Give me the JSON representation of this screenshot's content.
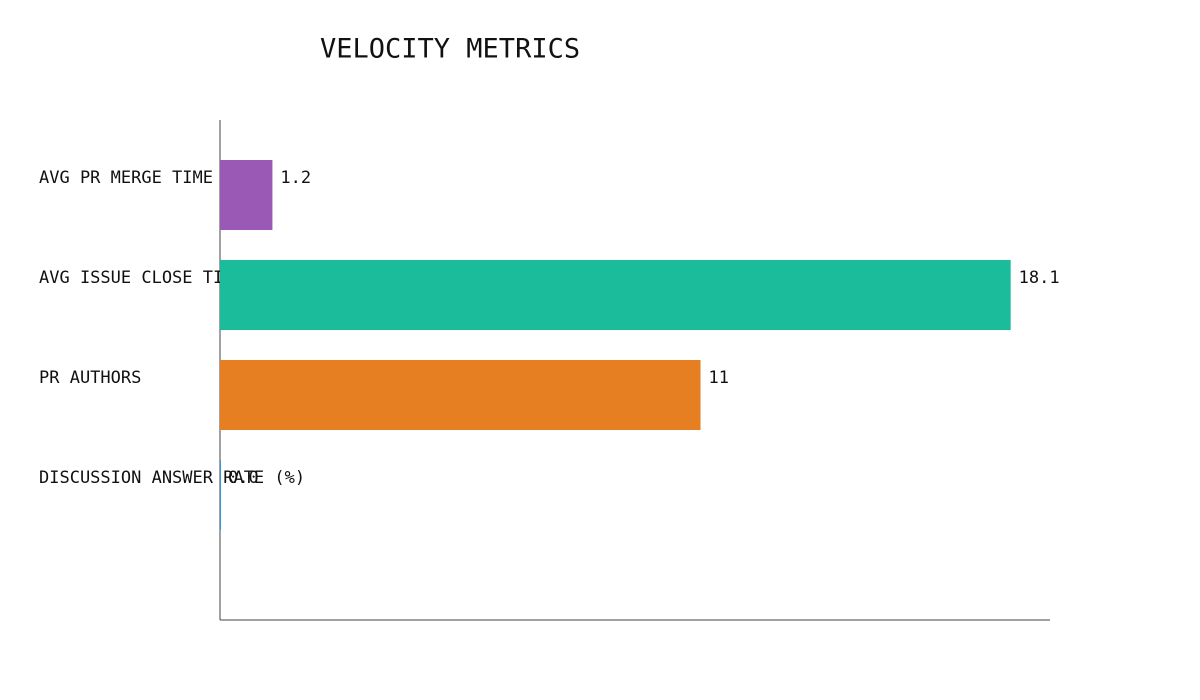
{
  "chart_data": {
    "type": "hbar",
    "title": "VELOCITY METRICS",
    "categories": [
      "AVG PR MERGE TIME (HRS)",
      "AVG ISSUE CLOSE TIME (HRS)",
      "PR AUTHORS",
      "DISCUSSION ANSWER RATE (%)"
    ],
    "values": [
      1.2,
      18.1,
      11,
      0
    ],
    "value_labels": [
      "1.2",
      "18.1",
      "11",
      "0.0"
    ],
    "colors": [
      "#9b59b6",
      "#1abc9c",
      "#e67e22",
      "#3498db"
    ],
    "xlim": [
      0,
      19
    ]
  }
}
